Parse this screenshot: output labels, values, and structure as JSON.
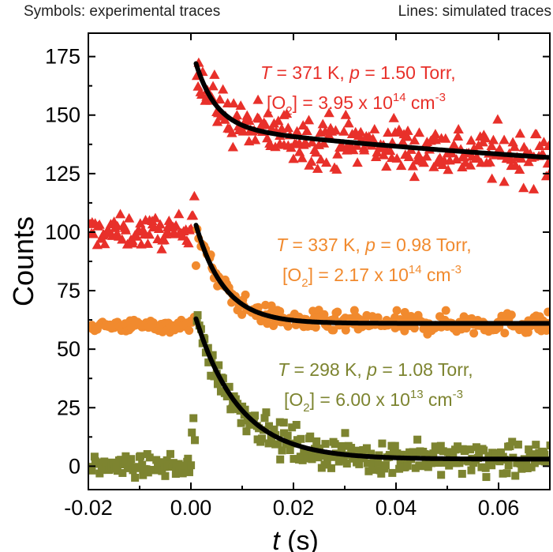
{
  "header": {
    "left": "Symbols: experimental traces",
    "right": "Lines: simulated traces"
  },
  "chart_data": {
    "type": "scatter",
    "xlabel_var": "t",
    "xlabel_unit": "(s)",
    "ylabel": "Counts",
    "xlim": [
      -0.02,
      0.07
    ],
    "ylim": [
      -10,
      185
    ],
    "xticks": [
      -0.02,
      0.0,
      0.02,
      0.04,
      0.06
    ],
    "xtick_labels": [
      "-0.02",
      "0.00",
      "0.02",
      "0.04",
      "0.06"
    ],
    "yticks": [
      0,
      25,
      50,
      75,
      100,
      125,
      150,
      175
    ],
    "ytick_labels": [
      "0",
      "25",
      "50",
      "75",
      "100",
      "125",
      "150",
      "175"
    ],
    "series": [
      {
        "color": "#e8302a",
        "marker": "triangle",
        "baseline": 100,
        "peak": 172,
        "asymptote": 115,
        "decay_tau": 0.004,
        "slow_tau": 0.12,
        "fit_start": 0.001,
        "legend": {
          "T": "371 K",
          "p": "1.50 Torr",
          "O2_mantissa": "3.95",
          "O2_exp": "14"
        }
      },
      {
        "color": "#f18a2e",
        "marker": "circle",
        "baseline": 60,
        "peak": 103,
        "asymptote": 61,
        "decay_tau": 0.0055,
        "slow_tau": 0,
        "fit_start": 0.001,
        "legend": {
          "T": "337 K",
          "p": "0.98 Torr",
          "O2_mantissa": "2.17",
          "O2_exp": "14"
        }
      },
      {
        "color": "#7d8430",
        "marker": "square",
        "baseline": 0,
        "peak": 63,
        "asymptote": 3,
        "decay_tau": 0.0085,
        "slow_tau": 0,
        "fit_start": 0.001,
        "legend": {
          "T": "298 K",
          "p": "1.08 Torr",
          "O2_mantissa": "6.00",
          "O2_exp": "13"
        }
      }
    ],
    "fit_line_color": "#000000"
  }
}
